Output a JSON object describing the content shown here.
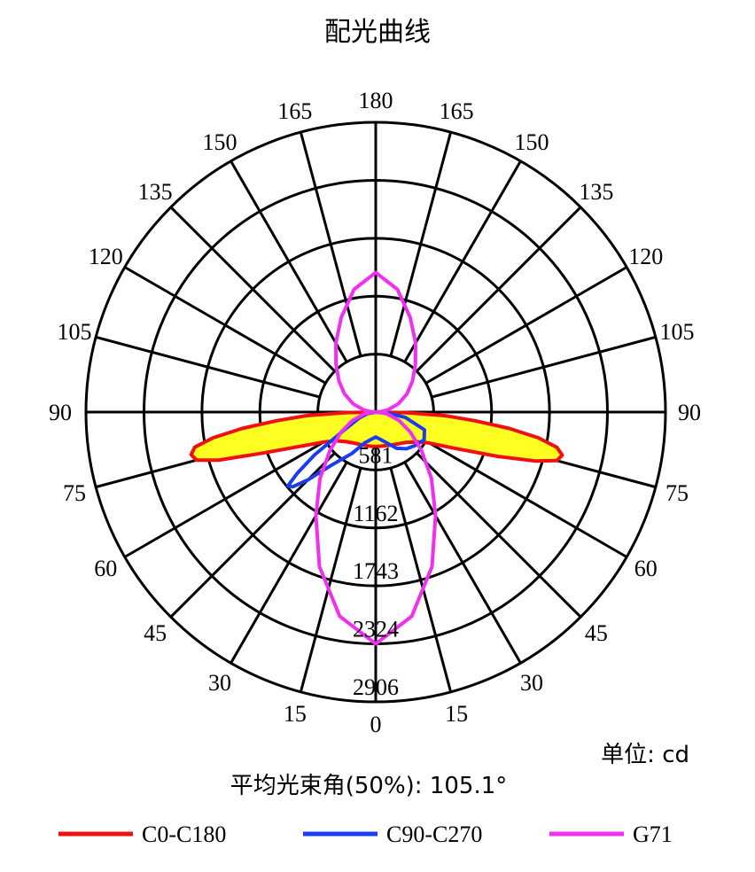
{
  "chart_data": {
    "type": "polar",
    "title": "配光曲线",
    "unit_label": "单位: cd",
    "beam_angle_label": "平均光束角(50%): 105.1°",
    "radial_ticks": [
      "581",
      "1162",
      "1743",
      "2324",
      "2906"
    ],
    "radial_values": [
      581,
      1162,
      1743,
      2324,
      2906
    ],
    "r_max": 2906,
    "angle_labels": [
      "0",
      "15",
      "30",
      "45",
      "60",
      "75",
      "90",
      "105",
      "120",
      "135",
      "150",
      "165",
      "180"
    ],
    "angle_step_deg": 15,
    "grid": true,
    "legend_position": "bottom",
    "series": [
      {
        "name": "C0-C180",
        "color": "#f01010",
        "fill": "#ffff22",
        "points": [
          [
            -90,
            0
          ],
          [
            -89,
            300
          ],
          [
            -87,
            700
          ],
          [
            -85,
            1000
          ],
          [
            -83,
            1350
          ],
          [
            -81,
            1650
          ],
          [
            -79,
            1850
          ],
          [
            -77,
            1900
          ],
          [
            -75,
            1860
          ],
          [
            -73,
            1650
          ],
          [
            -70,
            1200
          ],
          [
            -65,
            800
          ],
          [
            -60,
            600
          ],
          [
            -55,
            500
          ],
          [
            -45,
            420
          ],
          [
            -35,
            380
          ],
          [
            -25,
            360
          ],
          [
            -15,
            350
          ],
          [
            -5,
            345
          ],
          [
            5,
            345
          ],
          [
            15,
            350
          ],
          [
            25,
            365
          ],
          [
            35,
            390
          ],
          [
            45,
            430
          ],
          [
            55,
            520
          ],
          [
            60,
            620
          ],
          [
            65,
            850
          ],
          [
            70,
            1300
          ],
          [
            73,
            1680
          ],
          [
            75,
            1880
          ],
          [
            77,
            1920
          ],
          [
            79,
            1850
          ],
          [
            81,
            1650
          ],
          [
            83,
            1350
          ],
          [
            85,
            1000
          ],
          [
            87,
            700
          ],
          [
            89,
            300
          ],
          [
            90,
            0
          ]
        ]
      },
      {
        "name": "C90-C270",
        "color": "#1a3df0",
        "fill": "none",
        "points": [
          [
            -90,
            0
          ],
          [
            -80,
            80
          ],
          [
            -70,
            180
          ],
          [
            -60,
            380
          ],
          [
            -55,
            750
          ],
          [
            -52,
            1000
          ],
          [
            -50,
            1150
          ],
          [
            -48,
            1120
          ],
          [
            -45,
            960
          ],
          [
            -40,
            700
          ],
          [
            -30,
            480
          ],
          [
            -20,
            330
          ],
          [
            -10,
            280
          ],
          [
            0,
            250
          ],
          [
            10,
            280
          ],
          [
            20,
            330
          ],
          [
            30,
            420
          ],
          [
            40,
            480
          ],
          [
            50,
            520
          ],
          [
            60,
            560
          ],
          [
            70,
            520
          ],
          [
            80,
            300
          ],
          [
            85,
            120
          ],
          [
            90,
            0
          ]
        ]
      },
      {
        "name": "G71",
        "color": "#f030f0",
        "fill": "none",
        "points": [
          [
            -180,
            1400
          ],
          [
            -170,
            1250
          ],
          [
            -160,
            1010
          ],
          [
            -150,
            800
          ],
          [
            -140,
            620
          ],
          [
            -130,
            480
          ],
          [
            -120,
            360
          ],
          [
            -110,
            240
          ],
          [
            -100,
            120
          ],
          [
            -95,
            50
          ],
          [
            -90,
            0
          ],
          [
            -85,
            55
          ],
          [
            -80,
            120
          ],
          [
            -70,
            250
          ],
          [
            -60,
            400
          ],
          [
            -50,
            600
          ],
          [
            -40,
            870
          ],
          [
            -30,
            1200
          ],
          [
            -20,
            1650
          ],
          [
            -10,
            2080
          ],
          [
            0,
            2324
          ],
          [
            10,
            2080
          ],
          [
            20,
            1650
          ],
          [
            30,
            1200
          ],
          [
            40,
            870
          ],
          [
            50,
            600
          ],
          [
            60,
            400
          ],
          [
            70,
            250
          ],
          [
            80,
            120
          ],
          [
            85,
            55
          ],
          [
            90,
            0
          ],
          [
            95,
            50
          ],
          [
            100,
            120
          ],
          [
            110,
            240
          ],
          [
            120,
            360
          ],
          [
            130,
            480
          ],
          [
            140,
            620
          ],
          [
            150,
            800
          ],
          [
            160,
            1010
          ],
          [
            170,
            1250
          ],
          [
            180,
            1400
          ]
        ]
      }
    ]
  }
}
